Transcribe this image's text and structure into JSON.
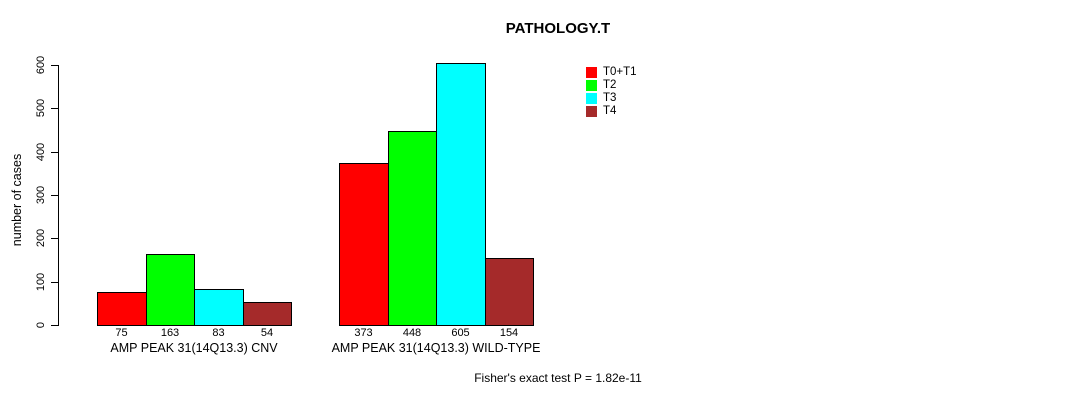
{
  "title": "PATHOLOGY.T",
  "ylabel": "number of cases",
  "annotation": "Fisher's exact test P = 1.82e-11",
  "chart_data": {
    "type": "bar",
    "title": "PATHOLOGY.T",
    "xlabel": "",
    "ylabel": "number of cases",
    "categories": [
      "AMP PEAK 31(14Q13.3) CNV",
      "AMP PEAK 31(14Q13.3) WILD-TYPE"
    ],
    "series": [
      {
        "name": "T0+T1",
        "color": "#FF0000",
        "values": [
          75,
          373
        ]
      },
      {
        "name": "T2",
        "color": "#00FF00",
        "values": [
          163,
          448
        ]
      },
      {
        "name": "T3",
        "color": "#00FFFF",
        "values": [
          83,
          605
        ]
      },
      {
        "name": "T4",
        "color": "#A52A2A",
        "values": [
          54,
          154
        ]
      }
    ],
    "ylim": [
      0,
      600
    ],
    "yticks": [
      0,
      100,
      200,
      300,
      400,
      500,
      600
    ],
    "bar_value_labels": true,
    "grid": false,
    "legend_position": "top-right",
    "annotation": "Fisher's exact test P = 1.82e-11"
  }
}
